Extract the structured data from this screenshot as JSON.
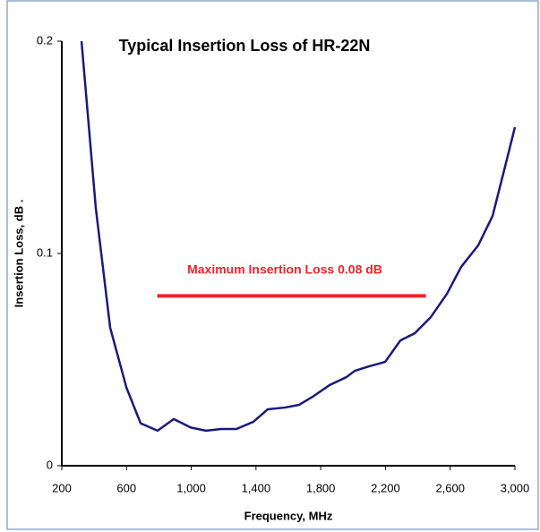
{
  "chart_data": {
    "type": "line",
    "title": "Typical Insertion Loss of HR-22N",
    "xlabel": "Frequency, MHz",
    "ylabel": "Insertion Loss, dB .",
    "annotation": "Maximum Insertion Loss 0.08 dB",
    "reference_line": {
      "y": 0.08,
      "x": [
        790,
        2450
      ],
      "color": "#e8262b"
    },
    "x": [
      322,
      410,
      499,
      600,
      687,
      792,
      892,
      997,
      1091,
      1185,
      1279,
      1384,
      1473,
      1578,
      1667,
      1750,
      1855,
      1960,
      2010,
      2098,
      2198,
      2292,
      2381,
      2480,
      2580,
      2668,
      2773,
      2862,
      2956,
      3000
    ],
    "series": [
      {
        "name": "Insertion Loss",
        "color": "#1a1a7a",
        "values": [
          0.2,
          0.1215,
          0.065,
          0.0367,
          0.02,
          0.0165,
          0.022,
          0.018,
          0.0165,
          0.0173,
          0.0173,
          0.0207,
          0.0266,
          0.0274,
          0.0287,
          0.0325,
          0.038,
          0.0418,
          0.0447,
          0.0468,
          0.0489,
          0.059,
          0.0624,
          0.07,
          0.081,
          0.0937,
          0.1038,
          0.1177,
          0.146,
          0.1595
        ]
      }
    ],
    "xlim": [
      200,
      3000
    ],
    "xticks": [
      200,
      600,
      {
        "value": 1000,
        "label": "1,000"
      },
      {
        "value": 1400,
        "label": "1,400"
      },
      {
        "value": 1800,
        "label": "1,800"
      },
      {
        "value": 2200,
        "label": "2,200"
      },
      {
        "value": 2600,
        "label": "2,600"
      },
      {
        "value": 3000,
        "label": "3,000"
      }
    ],
    "ylim": [
      0,
      0.2
    ],
    "yticks": [
      0,
      0.1,
      0.2
    ]
  }
}
